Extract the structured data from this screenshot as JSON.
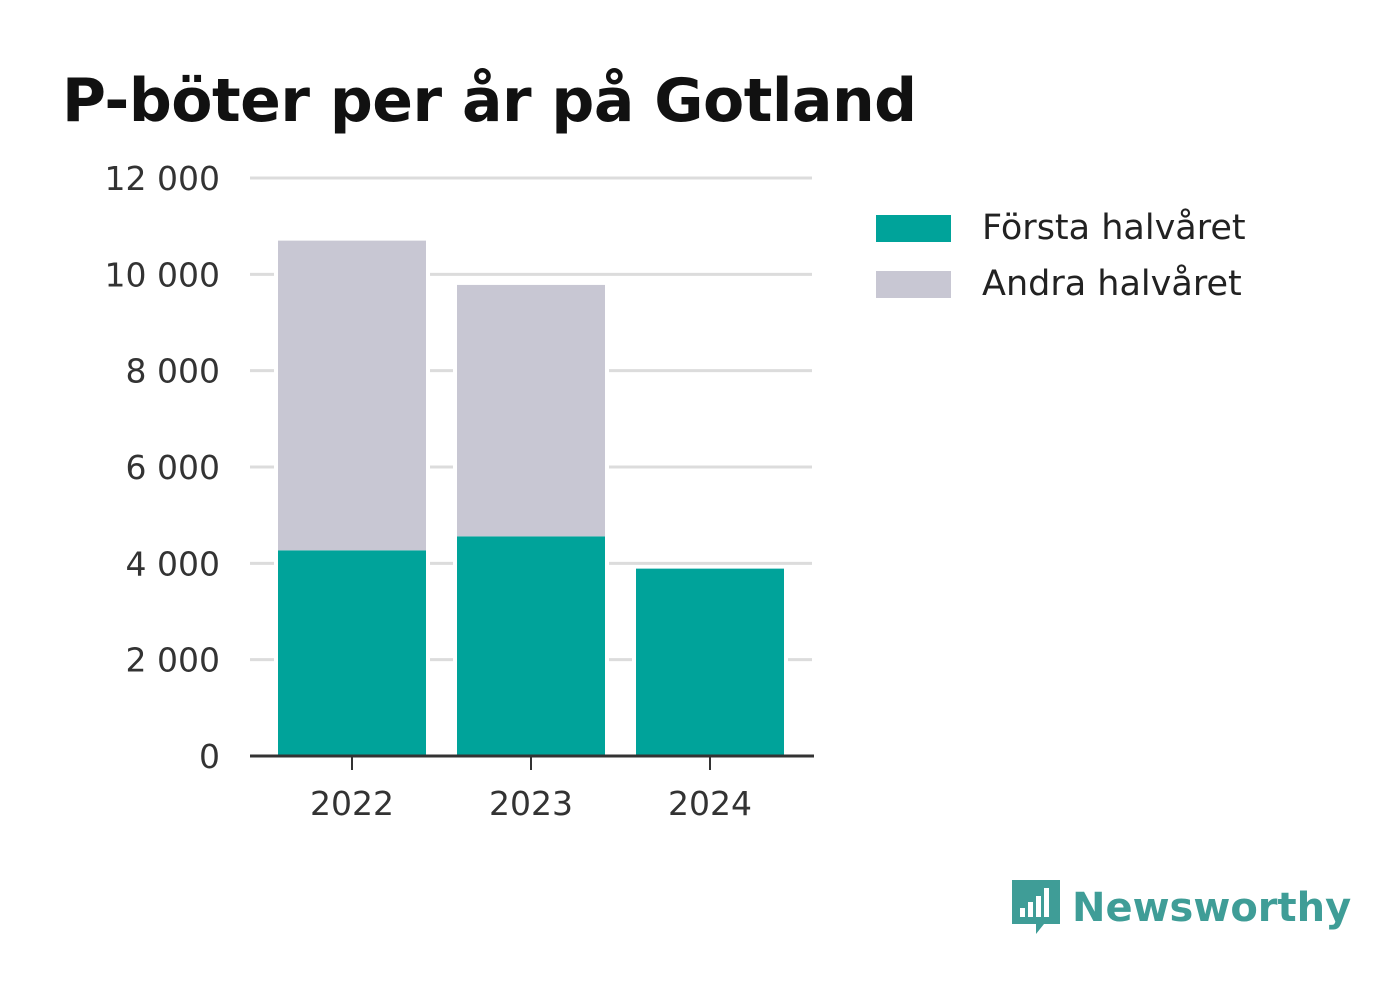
{
  "title": "P-böter per år på Gotland",
  "colors": {
    "first_half": "#00a39a",
    "second_half": "#c8c7d3",
    "grid": "#dcdcdc",
    "axis": "#333333",
    "brand": "#3f9d97"
  },
  "legend": [
    {
      "label": "Första halvåret",
      "color": "#00a39a"
    },
    {
      "label": "Andra halvåret",
      "color": "#c8c7d3"
    }
  ],
  "brand": {
    "name": "Newsworthy",
    "icon": "newsworthy-logo-icon"
  },
  "chart_data": {
    "type": "bar",
    "stacked": true,
    "categories": [
      "2022",
      "2023",
      "2024"
    ],
    "series": [
      {
        "name": "Första halvåret",
        "values": [
          4270,
          4560,
          3890
        ]
      },
      {
        "name": "Andra halvåret",
        "values": [
          6430,
          5220,
          0
        ]
      }
    ],
    "yticks": [
      0,
      2000,
      4000,
      6000,
      8000,
      10000,
      12000
    ],
    "ytick_labels": [
      "0",
      "2 000",
      "4 000",
      "6 000",
      "8 000",
      "10 000",
      "12 000"
    ],
    "ylim": [
      0,
      12000
    ],
    "grid": true,
    "legend_position": "right",
    "title": "P-böter per år på Gotland"
  }
}
